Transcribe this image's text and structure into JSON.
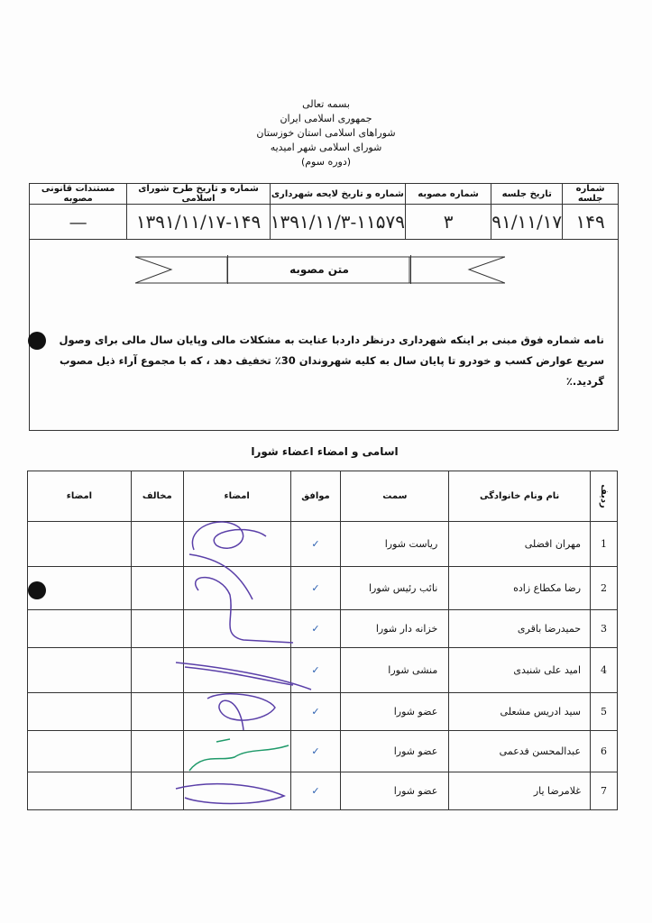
{
  "header": {
    "lines": [
      "بسمه تعالی",
      "جمهوری اسلامی ایران",
      "شوراهای اسلامی استان خوزستان",
      "شورای اسلامی شهر امیدیه",
      "(دوره سوم)"
    ]
  },
  "session_table": {
    "headers": [
      "شماره جلسه",
      "تاریخ جلسه",
      "شماره مصوبه",
      "شماره و تاریخ  لایحه شهرداری",
      "شماره و تاریخ طرح شورای اسلامی",
      "مستندات قانونی مصوبه"
    ],
    "values": [
      "۱۴۹",
      "۹۱/۱۱/۱۷",
      "۳",
      "۱۳۹۱/۱۱/۳-۱۱۵۷۹",
      "۱۳۹۱/۱۱/۱۷-۱۴۹",
      "—"
    ]
  },
  "resolution": {
    "title": "متن مصوبه",
    "text": "نامه شماره فوق مبنی بر اینکه شهرداری درنظر داردبا عنایت به مشکلات مالی وپایان سال مالی  برای وصول سریع عوارض کسب و خودرو تا پایان سال به کلیه شهروندان 30٪ تخفیف دهد ، که با مجموع آراء ذیل مصوب گردید.٪"
  },
  "members": {
    "title": "اسامی و امضاء اعضاء شورا",
    "headers": [
      "ردیف",
      "نام ونام خانوادگی",
      "سمت",
      "موافق",
      "امضاء",
      "مخالف",
      "امضاء"
    ],
    "rows": [
      {
        "n": "1",
        "name": "مهران افضلی",
        "role": "ریاست شورا",
        "agree": "✓"
      },
      {
        "n": "2",
        "name": "رضا مکطاع زاده",
        "role": "نائب رئیس شورا",
        "agree": "✓"
      },
      {
        "n": "3",
        "name": "حمیدرضا باقری",
        "role": "خزانه دار شورا",
        "agree": "✓"
      },
      {
        "n": "4",
        "name": "امید علی شنبدی",
        "role": "منشی شورا",
        "agree": "✓"
      },
      {
        "n": "5",
        "name": "سید ادریس مشعلی",
        "role": "عضو شورا",
        "agree": "✓"
      },
      {
        "n": "6",
        "name": "عبدالمحسن فدعمی",
        "role": "عضو شورا",
        "agree": "✓"
      },
      {
        "n": "7",
        "name": "غلامرضا یار",
        "role": "عضو شورا",
        "agree": "✓"
      }
    ]
  },
  "colors": {
    "ink": "#2a5fb0",
    "sig_purple": "#5a3fa8",
    "sig_green": "#1f9a6a"
  }
}
